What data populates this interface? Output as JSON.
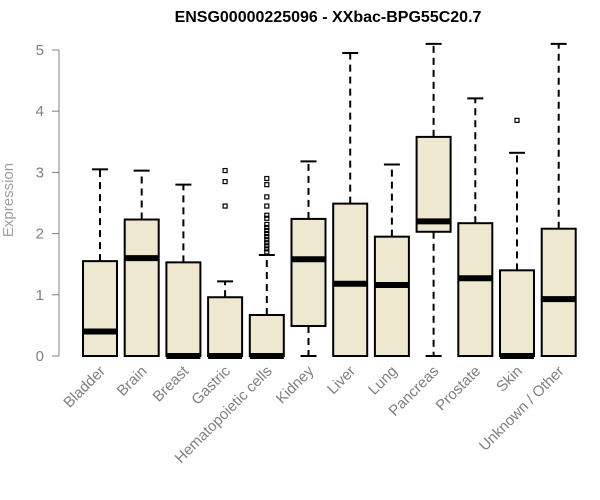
{
  "chart_data": {
    "type": "boxplot",
    "title": "ENSG00000225096 - XXbac-BPG55C20.7",
    "ylabel": "Expression",
    "ylim": [
      0,
      5.2
    ],
    "yticks": [
      0,
      1,
      2,
      3,
      4,
      5
    ],
    "box_fill": "#efe8d0",
    "categories": [
      "Bladder",
      "Brain",
      "Breast",
      "Gastric",
      "Hematopoietic cells",
      "Kidney",
      "Liver",
      "Lung",
      "Pancreas",
      "Prostate",
      "Skin",
      "Unknown / Other"
    ],
    "boxes": [
      {
        "whisker_low": 0,
        "q1": 0,
        "median": 0.4,
        "q3": 1.55,
        "whisker_high": 3.05,
        "outliers": []
      },
      {
        "whisker_low": 0,
        "q1": 0,
        "median": 1.6,
        "q3": 2.23,
        "whisker_high": 3.03,
        "outliers": []
      },
      {
        "whisker_low": 0,
        "q1": 0,
        "median": 0,
        "q3": 1.53,
        "whisker_high": 2.8,
        "outliers": []
      },
      {
        "whisker_low": 0,
        "q1": 0,
        "median": 0,
        "q3": 0.96,
        "whisker_high": 1.22,
        "outliers": [
          2.45,
          2.85,
          3.03
        ]
      },
      {
        "whisker_low": 0,
        "q1": 0,
        "median": 0,
        "q3": 0.67,
        "whisker_high": 1.65,
        "outliers": [
          1.7,
          1.75,
          1.8,
          1.85,
          1.9,
          1.95,
          2.0,
          2.05,
          2.1,
          2.15,
          2.25,
          2.3,
          2.45,
          2.6,
          2.8,
          2.9
        ]
      },
      {
        "whisker_low": 0,
        "q1": 0.49,
        "median": 1.58,
        "q3": 2.24,
        "whisker_high": 3.18,
        "outliers": []
      },
      {
        "whisker_low": 0,
        "q1": 0,
        "median": 1.18,
        "q3": 2.49,
        "whisker_high": 4.95,
        "outliers": []
      },
      {
        "whisker_low": 0,
        "q1": 0,
        "median": 1.16,
        "q3": 1.95,
        "whisker_high": 3.13,
        "outliers": []
      },
      {
        "whisker_low": 0,
        "q1": 2.03,
        "median": 2.2,
        "q3": 3.58,
        "whisker_high": 5.1,
        "outliers": []
      },
      {
        "whisker_low": 0,
        "q1": 0,
        "median": 1.27,
        "q3": 2.17,
        "whisker_high": 4.21,
        "outliers": []
      },
      {
        "whisker_low": 0,
        "q1": 0,
        "median": 0,
        "q3": 1.4,
        "whisker_high": 3.32,
        "outliers": [
          3.85
        ]
      },
      {
        "whisker_low": 0,
        "q1": 0,
        "median": 0.93,
        "q3": 2.08,
        "whisker_high": 5.1,
        "outliers": []
      }
    ]
  }
}
